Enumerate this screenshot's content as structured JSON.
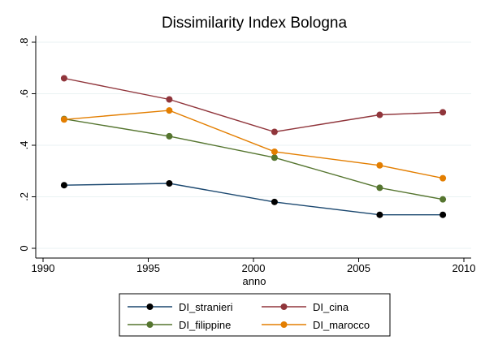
{
  "chart_data": {
    "type": "line",
    "title": "Dissimilarity Index Bologna",
    "xlabel": "anno",
    "ylabel": "",
    "x": [
      1991,
      1996,
      2001,
      2006,
      2009
    ],
    "xlim": [
      1990,
      2010
    ],
    "ylim": [
      0,
      0.8
    ],
    "x_ticks": [
      1990,
      1995,
      2000,
      2005,
      2010
    ],
    "x_tick_labels": [
      "1990",
      "1995",
      "2000",
      "2005",
      "2010"
    ],
    "y_ticks": [
      0,
      0.2,
      0.4,
      0.6,
      0.8
    ],
    "y_tick_labels": [
      "0",
      ".2",
      ".4",
      ".6",
      ".8"
    ],
    "grid": true,
    "legend_position": "bottom",
    "series": [
      {
        "name": "DI_stranieri",
        "color": "#1a476f",
        "marker_color": "#000000",
        "values": [
          0.245,
          0.252,
          0.18,
          0.13,
          0.13
        ]
      },
      {
        "name": "DI_cina",
        "color": "#90353b",
        "marker_color": "#90353b",
        "values": [
          0.66,
          0.578,
          0.452,
          0.518,
          0.528
        ]
      },
      {
        "name": "DI_filippine",
        "color": "#55752f",
        "marker_color": "#55752f",
        "values": [
          0.502,
          0.435,
          0.352,
          0.235,
          0.19
        ]
      },
      {
        "name": "DI_marocco",
        "color": "#e37e00",
        "marker_color": "#e37e00",
        "values": [
          0.5,
          0.535,
          0.375,
          0.322,
          0.272
        ]
      }
    ]
  }
}
